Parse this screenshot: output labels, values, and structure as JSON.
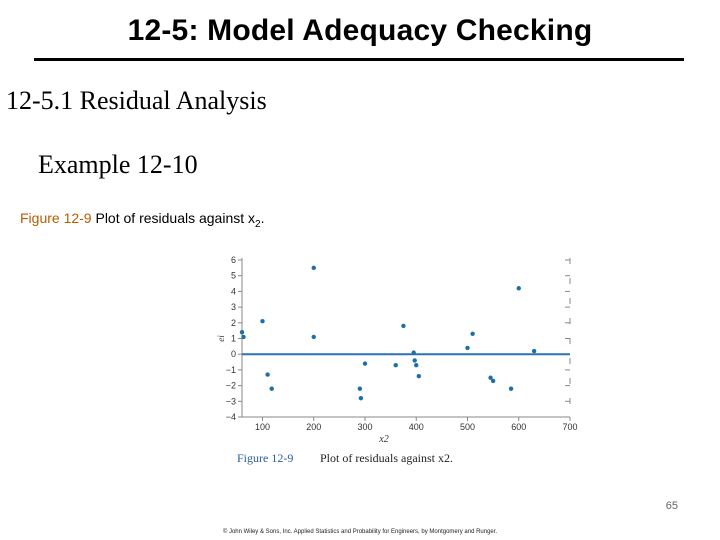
{
  "slide": {
    "title": "12-5: Model Adequacy Checking",
    "section": "12-5.1 Residual Analysis",
    "example": "Example 12-10",
    "caption_label": "Figure 12-9",
    "caption_text": "Plot of residuals against x",
    "caption_sub": "2",
    "caption_end": ".",
    "slide_number": "65",
    "footer": "© John Wiley & Sons, Inc.  Applied Statistics and Probability for Engineers, by Montgomery and Runger."
  },
  "chart_data": {
    "type": "scatter",
    "xlabel": "x2",
    "ylabel": "ei",
    "xlim": [
      60,
      700
    ],
    "ylim": [
      -4,
      6
    ],
    "xticks": [
      100,
      200,
      300,
      400,
      500,
      600,
      700
    ],
    "yticks": [
      6,
      5,
      4,
      3,
      2,
      1,
      0,
      -1,
      -2,
      -3,
      -4
    ],
    "reference_line_y": 0,
    "grid": false,
    "figure_caption_label": "Figure 12-9",
    "figure_caption_text": "Plot of residuals against x2.",
    "colors": {
      "points": "#1e6fa8",
      "refline": "#2a73b5",
      "axes": "#888888",
      "caption_label": "#2a5f9e"
    },
    "points": [
      {
        "x": 60,
        "y": 1.4
      },
      {
        "x": 63,
        "y": 1.1
      },
      {
        "x": 100,
        "y": 2.1
      },
      {
        "x": 110,
        "y": -1.3
      },
      {
        "x": 118,
        "y": -2.2
      },
      {
        "x": 200,
        "y": 5.5
      },
      {
        "x": 200,
        "y": 1.1
      },
      {
        "x": 290,
        "y": -2.2
      },
      {
        "x": 292,
        "y": -2.8
      },
      {
        "x": 300,
        "y": -0.6
      },
      {
        "x": 375,
        "y": 1.8
      },
      {
        "x": 360,
        "y": -0.7
      },
      {
        "x": 395,
        "y": 0.1
      },
      {
        "x": 397,
        "y": -0.4
      },
      {
        "x": 400,
        "y": -0.7
      },
      {
        "x": 405,
        "y": -1.4
      },
      {
        "x": 500,
        "y": 0.4
      },
      {
        "x": 510,
        "y": 1.3
      },
      {
        "x": 545,
        "y": -1.5
      },
      {
        "x": 550,
        "y": -1.7
      },
      {
        "x": 585,
        "y": -2.2
      },
      {
        "x": 600,
        "y": 4.2
      },
      {
        "x": 630,
        "y": 0.2
      }
    ]
  }
}
